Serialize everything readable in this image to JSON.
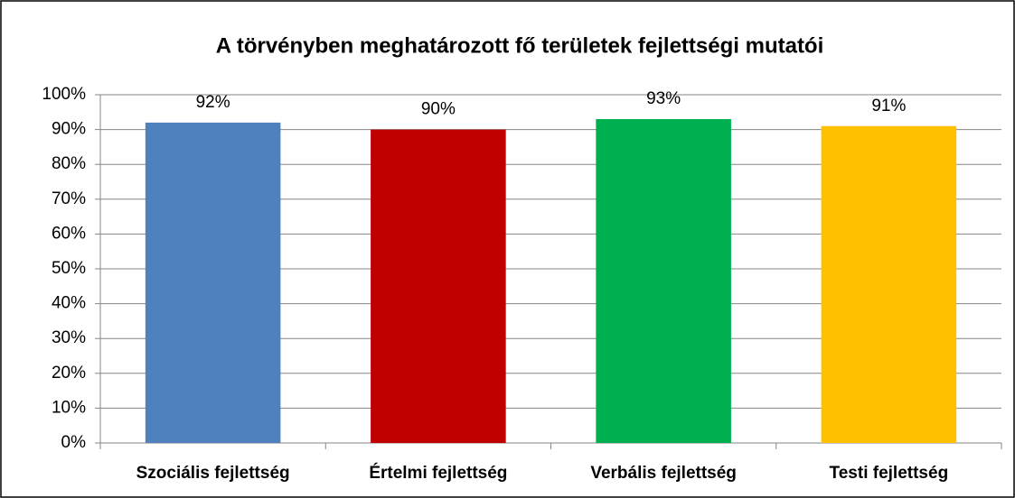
{
  "chart_data": {
    "type": "bar",
    "title": "A törvényben meghatározott fő területek fejlettségi mutatói",
    "categories": [
      "Szociális fejlettség",
      "Értelmi fejlettség",
      "Verbális fejlettség",
      "Testi fejlettség"
    ],
    "values": [
      92,
      90,
      93,
      91
    ],
    "value_labels": [
      "92%",
      "90%",
      "93%",
      "91%"
    ],
    "colors": [
      "#4f81bd",
      "#c00000",
      "#00b050",
      "#ffc000"
    ],
    "ylim": [
      0,
      100
    ],
    "yticks": [
      {
        "value": 0,
        "label": "0%"
      },
      {
        "value": 10,
        "label": "10%"
      },
      {
        "value": 20,
        "label": "20%"
      },
      {
        "value": 30,
        "label": "30%"
      },
      {
        "value": 40,
        "label": "40%"
      },
      {
        "value": 50,
        "label": "50%"
      },
      {
        "value": 60,
        "label": "60%"
      },
      {
        "value": 70,
        "label": "70%"
      },
      {
        "value": 80,
        "label": "80%"
      },
      {
        "value": 90,
        "label": "90%"
      },
      {
        "value": 100,
        "label": "100%"
      }
    ],
    "grid": true
  }
}
